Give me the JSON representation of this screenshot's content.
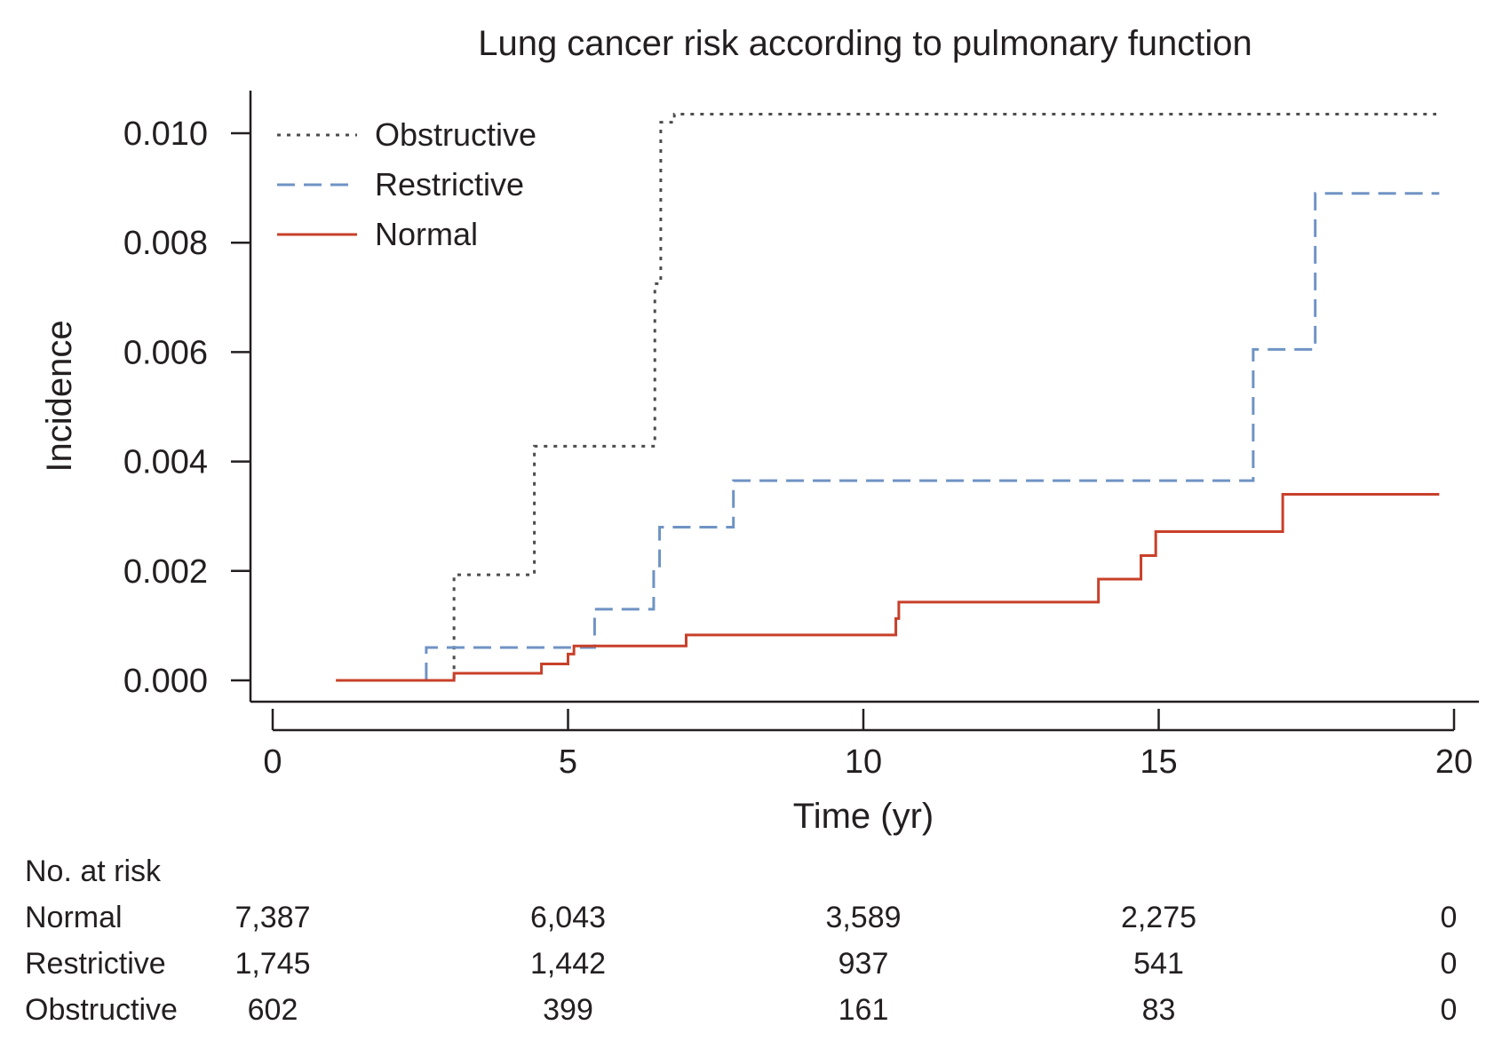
{
  "chart_data": {
    "type": "line",
    "step": true,
    "title": "Lung cancer risk according to pulmonary function",
    "xlabel": "Time (yr)",
    "ylabel": "Incidence",
    "xlim": [
      0,
      20
    ],
    "ylim": [
      0,
      0.0107
    ],
    "x_ticks": [
      0,
      5,
      10,
      15,
      20
    ],
    "y_ticks": [
      0.0,
      0.002,
      0.004,
      0.006,
      0.008,
      0.01
    ],
    "x_tick_labels": [
      "0",
      "5",
      "10",
      "15",
      "20"
    ],
    "y_tick_labels": [
      "0.000",
      "0.002",
      "0.004",
      "0.006",
      "0.008",
      "0.010"
    ],
    "grid": false,
    "legend_position": "top-left",
    "series": [
      {
        "name": "Obstructive",
        "style": "dotted",
        "color": "#4d4d4d",
        "x": [
          2.6,
          3.07,
          4.43,
          6.47,
          6.57,
          6.8,
          19.7
        ],
        "y": [
          0.0,
          0.00193,
          0.00428,
          0.00725,
          0.0102,
          0.01035,
          0.01035
        ]
      },
      {
        "name": "Restrictive",
        "style": "dashed",
        "color": "#6f93c4",
        "x": [
          2.6,
          2.6,
          5.45,
          6.45,
          6.55,
          7.8,
          16.6,
          17.65,
          19.75
        ],
        "y": [
          0.0,
          0.0006,
          0.0013,
          0.00205,
          0.0028,
          0.00365,
          0.00605,
          0.0089,
          0.0089
        ]
      },
      {
        "name": "Normal",
        "style": "solid",
        "color": "#c8402a",
        "x": [
          1.07,
          3.07,
          4.55,
          5.0,
          5.1,
          7.0,
          10.55,
          10.6,
          13.98,
          14.7,
          14.95,
          17.1,
          19.75
        ],
        "y": [
          0.0,
          0.00013,
          0.0003,
          0.00048,
          0.00063,
          0.00083,
          0.00113,
          0.00143,
          0.00185,
          0.00228,
          0.00272,
          0.0034,
          0.0034
        ]
      }
    ],
    "risk_table": {
      "header": "No. at risk",
      "rows": [
        {
          "label": "Normal",
          "values": [
            "7,387",
            "6,043",
            "3,589",
            "2,275",
            "0"
          ]
        },
        {
          "label": "Restrictive",
          "values": [
            "1,745",
            "1,442",
            "937",
            "541",
            "0"
          ]
        },
        {
          "label": "Obstructive",
          "values": [
            "602",
            "399",
            "161",
            "83",
            "0"
          ]
        }
      ]
    }
  }
}
